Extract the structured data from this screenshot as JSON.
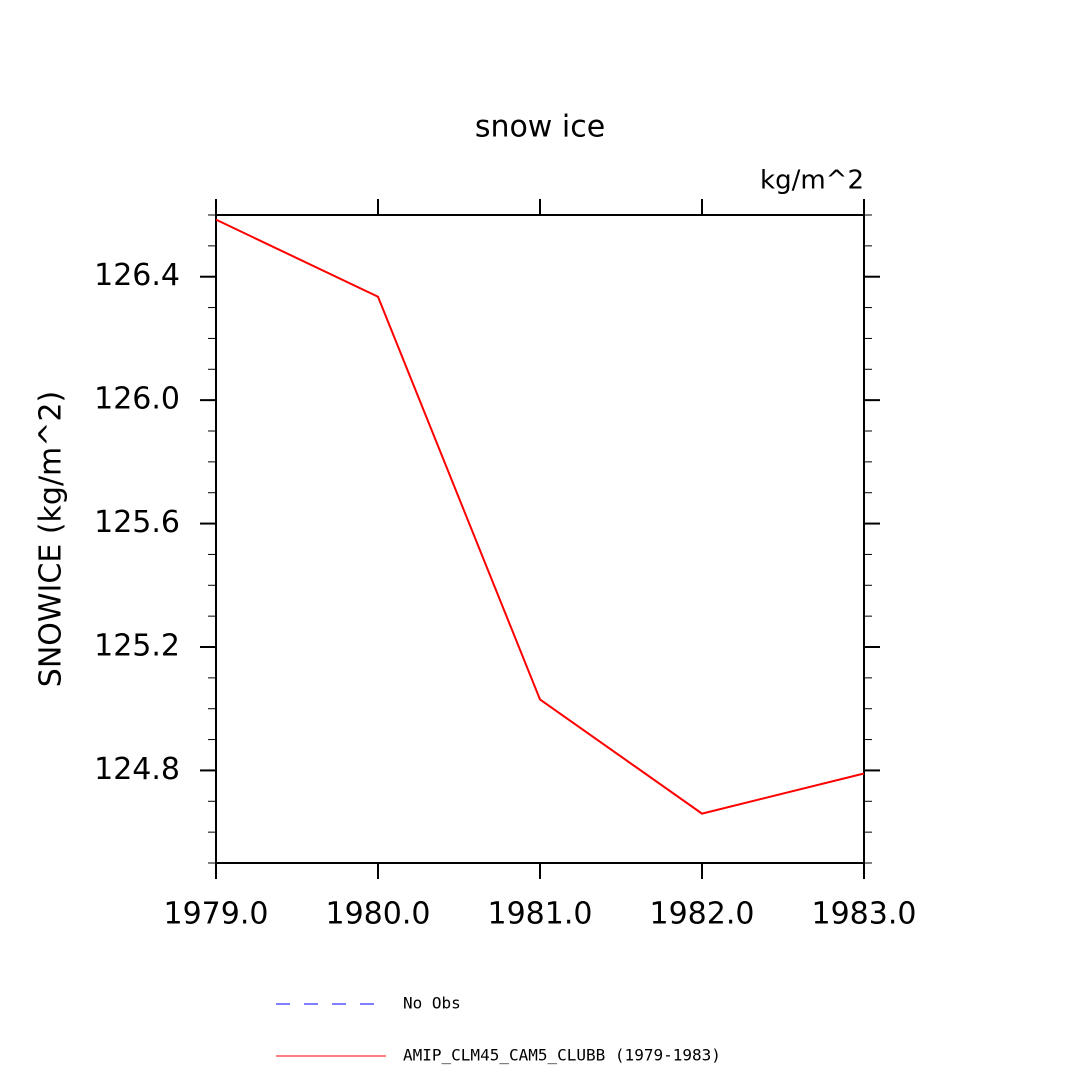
{
  "chart_data": {
    "type": "line",
    "title": "snow ice",
    "units": "kg/m^2",
    "y_label": "SNOWICE  (kg/m^2)",
    "x": [
      1979,
      1980,
      1981,
      1982,
      1983
    ],
    "xlim": [
      1979,
      1983
    ],
    "xticks": [
      {
        "value": 1979,
        "label": "1979.0"
      },
      {
        "value": 1980,
        "label": "1980.0"
      },
      {
        "value": 1981,
        "label": "1981.0"
      },
      {
        "value": 1982,
        "label": "1982.0"
      },
      {
        "value": 1983,
        "label": "1983.0"
      }
    ],
    "ylim": [
      124.5,
      126.6
    ],
    "yticks": [
      124.8,
      125.2,
      125.6,
      {
        "value": 126.0,
        "label": "126.0"
      },
      126.4
    ],
    "yminor_ticks": [
      124.5,
      124.6,
      124.7,
      124.9,
      125.0,
      125.1,
      125.3,
      125.4,
      125.5,
      125.7,
      125.8,
      125.9,
      126.1,
      126.2,
      126.3,
      126.5,
      126.6
    ],
    "series": [
      {
        "name": "No Obs",
        "color": "#0000ff",
        "dashed": true,
        "values": [
          null,
          null,
          null,
          null,
          null
        ]
      },
      {
        "name": "AMIP_CLM45_CAM5_CLUBB (1979-1983)",
        "color": "#ff0000",
        "dashed": false,
        "values": [
          126.585,
          126.335,
          125.03,
          124.66,
          124.79
        ]
      }
    ]
  }
}
